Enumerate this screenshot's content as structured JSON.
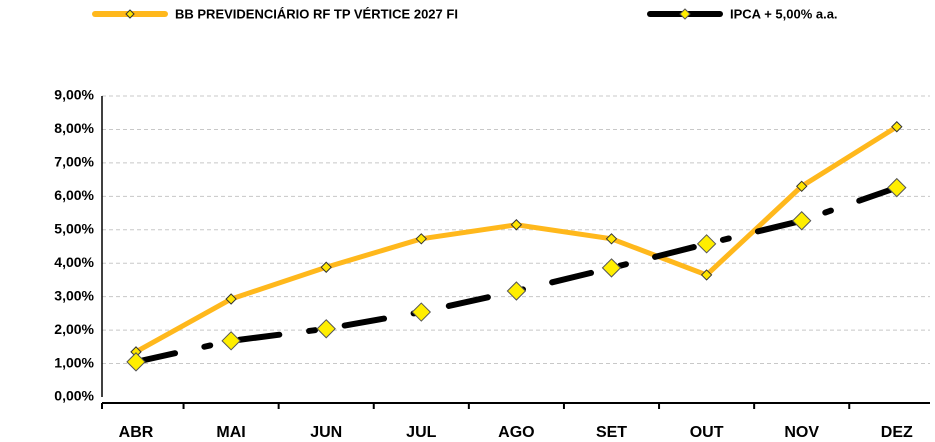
{
  "chart_data": {
    "type": "line",
    "categories": [
      "ABR",
      "MAI",
      "JUN",
      "JUL",
      "AGO",
      "SET",
      "OUT",
      "NOV",
      "DEZ"
    ],
    "series": [
      {
        "name": "BB PREVIDENCIÁRIO RF TP VÉRTICE 2027 FI",
        "color": "#ffb81c",
        "values": [
          1.35,
          2.93,
          3.88,
          4.73,
          5.15,
          4.73,
          3.65,
          6.3,
          8.08
        ]
      },
      {
        "name": "IPCA + 5,00% a.a.",
        "color": "#000000",
        "values": [
          1.05,
          1.68,
          2.04,
          2.54,
          3.17,
          3.86,
          4.58,
          5.27,
          6.26
        ]
      }
    ],
    "ylim": [
      0,
      9
    ],
    "yticks": [
      {
        "value": 0,
        "label": "0,00%"
      },
      {
        "value": 1,
        "label": "1,00%"
      },
      {
        "value": 2,
        "label": "2,00%"
      },
      {
        "value": 3,
        "label": "3,00%"
      },
      {
        "value": 4,
        "label": "4,00%"
      },
      {
        "value": 5,
        "label": "5,00%"
      },
      {
        "value": 6,
        "label": "6,00%"
      },
      {
        "value": 7,
        "label": "7,00%"
      },
      {
        "value": 8,
        "label": "8,00%"
      },
      {
        "value": 9,
        "label": "9,00%"
      }
    ],
    "grid": true,
    "legend": "top"
  }
}
